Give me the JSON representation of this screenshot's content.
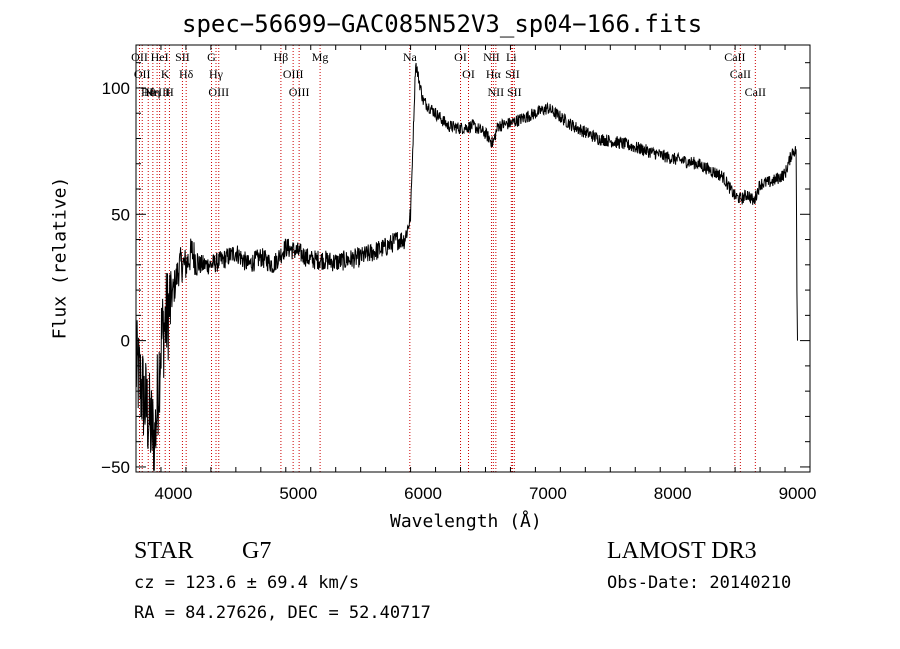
{
  "chart_data": {
    "type": "line",
    "title": "spec−56699−GAC085N52V3_sp04−166.fits",
    "xlabel": "Wavelength (Å)",
    "ylabel": "Flux (relative)",
    "xlim": [
      3700,
      9100
    ],
    "ylim": [
      -52,
      117
    ],
    "xticks": [
      4000,
      5000,
      6000,
      7000,
      8000,
      9000
    ],
    "yticks": [
      -50,
      0,
      50,
      100
    ],
    "grid": false,
    "series": [
      {
        "x": [
          3700,
          3750,
          3800,
          3850,
          3900,
          3950,
          4000,
          4050,
          4100,
          4150,
          4200,
          4300,
          4400,
          4500,
          4600,
          4700,
          4800,
          4900,
          5000,
          5100,
          5200,
          5300,
          5400,
          5500,
          5600,
          5700,
          5800,
          5850,
          5880,
          5900,
          5920,
          5940,
          5960,
          6000,
          6100,
          6200,
          6300,
          6400,
          6500,
          6560,
          6600,
          6700,
          6800,
          6900,
          7000,
          7200,
          7400,
          7600,
          7800,
          8000,
          8200,
          8400,
          8500,
          8550,
          8600,
          8650,
          8700,
          8800,
          8900,
          8960,
          8990,
          8995,
          9000
        ],
        "y": [
          -10,
          -20,
          -30,
          -40,
          0,
          10,
          20,
          30,
          30,
          35,
          30,
          30,
          32,
          35,
          30,
          33,
          30,
          37,
          35,
          32,
          32,
          31,
          32,
          33,
          35,
          37,
          40,
          40,
          45,
          50,
          80,
          110,
          105,
          95,
          90,
          85,
          84,
          85,
          82,
          78,
          85,
          86,
          88,
          90,
          92,
          85,
          80,
          78,
          75,
          72,
          70,
          65,
          57,
          56,
          58,
          55,
          62,
          63,
          66,
          75,
          75,
          20,
          0
        ]
      }
    ],
    "lines": [
      {
        "wavelength": 3728,
        "labels": [
          "OII"
        ]
      },
      {
        "wavelength": 3750,
        "labels": [
          "OII"
        ]
      },
      {
        "wavelength": 3798,
        "labels": [
          "Hθ"
        ]
      },
      {
        "wavelength": 3835,
        "labels": [
          "Hη"
        ]
      },
      {
        "wavelength": 3869,
        "labels": [
          "NeIII"
        ]
      },
      {
        "wavelength": 3889,
        "labels": [
          "HeI"
        ]
      },
      {
        "wavelength": 3934,
        "labels": [
          "K"
        ]
      },
      {
        "wavelength": 3968,
        "labels": [
          "H"
        ]
      },
      {
        "wavelength": 4072,
        "labels": [
          "SII"
        ]
      },
      {
        "wavelength": 4102,
        "labels": [
          "Hδ"
        ]
      },
      {
        "wavelength": 4305,
        "labels": [
          "G"
        ]
      },
      {
        "wavelength": 4341,
        "labels": [
          "Hγ"
        ]
      },
      {
        "wavelength": 4363,
        "labels": [
          "OIII"
        ]
      },
      {
        "wavelength": 4861,
        "labels": [
          "Hβ"
        ]
      },
      {
        "wavelength": 4959,
        "labels": [
          "OIII"
        ]
      },
      {
        "wavelength": 5007,
        "labels": [
          "OIII"
        ]
      },
      {
        "wavelength": 5175,
        "labels": [
          "Mg"
        ]
      },
      {
        "wavelength": 5894,
        "labels": [
          "Na"
        ]
      },
      {
        "wavelength": 6300,
        "labels": [
          "OI"
        ]
      },
      {
        "wavelength": 6364,
        "labels": [
          "OI"
        ]
      },
      {
        "wavelength": 6548,
        "labels": [
          "NII"
        ]
      },
      {
        "wavelength": 6563,
        "labels": [
          "Hα"
        ]
      },
      {
        "wavelength": 6583,
        "labels": [
          "NII"
        ]
      },
      {
        "wavelength": 6707,
        "labels": [
          "Li"
        ]
      },
      {
        "wavelength": 6716,
        "labels": [
          "SII"
        ]
      },
      {
        "wavelength": 6731,
        "labels": [
          "SII"
        ]
      },
      {
        "wavelength": 8498,
        "labels": [
          "CaII"
        ]
      },
      {
        "wavelength": 8542,
        "labels": [
          "CaII"
        ]
      },
      {
        "wavelength": 8662,
        "labels": [
          "CaII"
        ]
      }
    ],
    "line_color": "#cc0000"
  },
  "info": {
    "class_label": "STAR",
    "subclass_label": "G7",
    "survey": "LAMOST DR3",
    "cz": "cz = 123.6 ± 69.4 km/s",
    "obs_date": "Obs-Date: 20140210",
    "coords": "RA =  84.27626, DEC =  52.40717"
  }
}
